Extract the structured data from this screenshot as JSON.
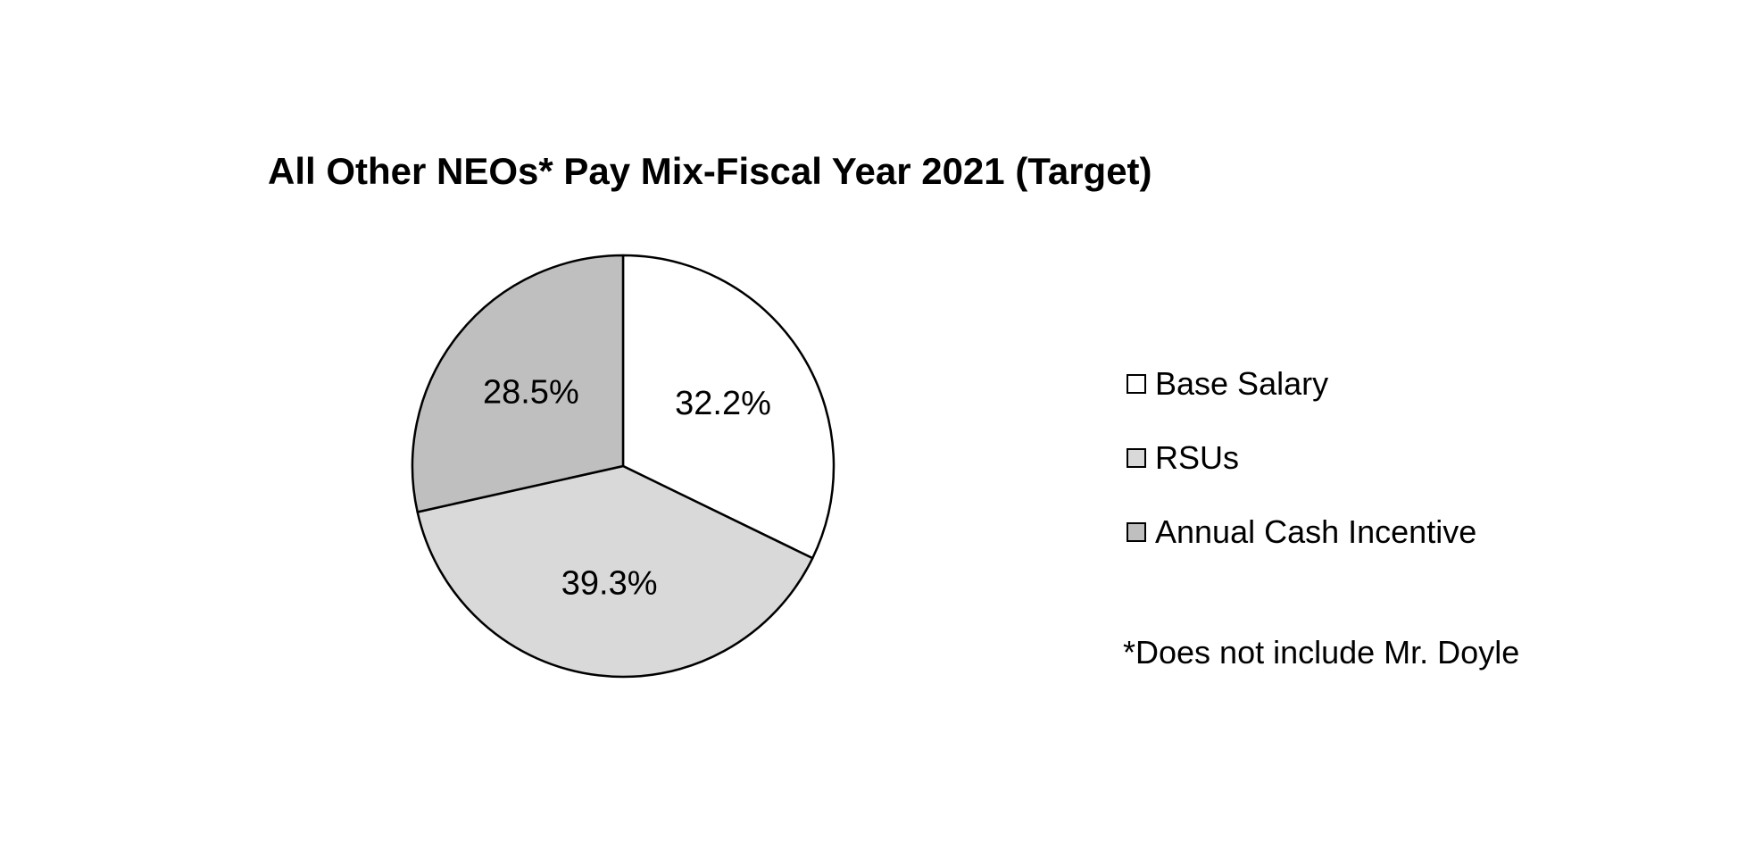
{
  "chart_data": {
    "type": "pie",
    "title": "All Other NEOs* Pay Mix-Fiscal Year 2021 (Target)",
    "slices": [
      {
        "label": "Base Salary",
        "value": 32.2,
        "display": "32.2%",
        "color": "#ffffff"
      },
      {
        "label": "RSUs",
        "value": 39.3,
        "display": "39.3%",
        "color": "#d9d9d9"
      },
      {
        "label": "Annual Cash Incentive",
        "value": 28.5,
        "display": "28.5%",
        "color": "#bfbfbf"
      }
    ],
    "legend_placement": "right",
    "note": "*Does not include Mr. Doyle"
  }
}
